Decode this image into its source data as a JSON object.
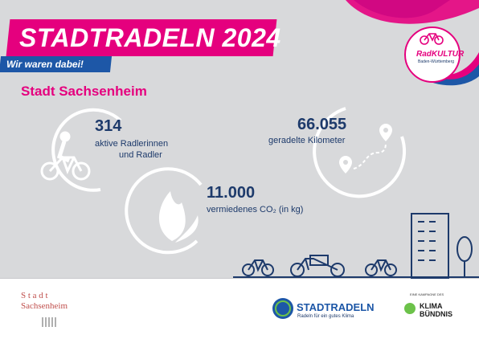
{
  "header": {
    "title": "STADTRADELN 2024",
    "subtitle": "Wir waren dabei!",
    "city": "Stadt Sachsenheim"
  },
  "badge": {
    "name": "RadKULTUR",
    "region": "Baden-Württemberg"
  },
  "stats": {
    "cyclists_value": "314",
    "cyclists_label_1": "aktive Radlerinnen",
    "cyclists_label_2": "und Radler",
    "km_value": "66.055",
    "km_label": "geradelte Kilometer",
    "co2_value": "11.000",
    "co2_label": "vermiedenes CO₂ (in kg)"
  },
  "footer": {
    "town_logo_1": "S t a d t",
    "town_logo_2": "Sachsenheim",
    "stadtradeln_logo": "STADTRADELN",
    "stadtradeln_tagline": "Radeln für ein gutes Klima",
    "campaign_note": "EINE KAMPAGNE DES",
    "klima_1": "KLIMA",
    "klima_2": "BÜNDNIS"
  },
  "colors": {
    "magenta": "#e5007e",
    "blue": "#1d57a7",
    "navy": "#1d3a6b",
    "grey": "#d8d9db"
  }
}
